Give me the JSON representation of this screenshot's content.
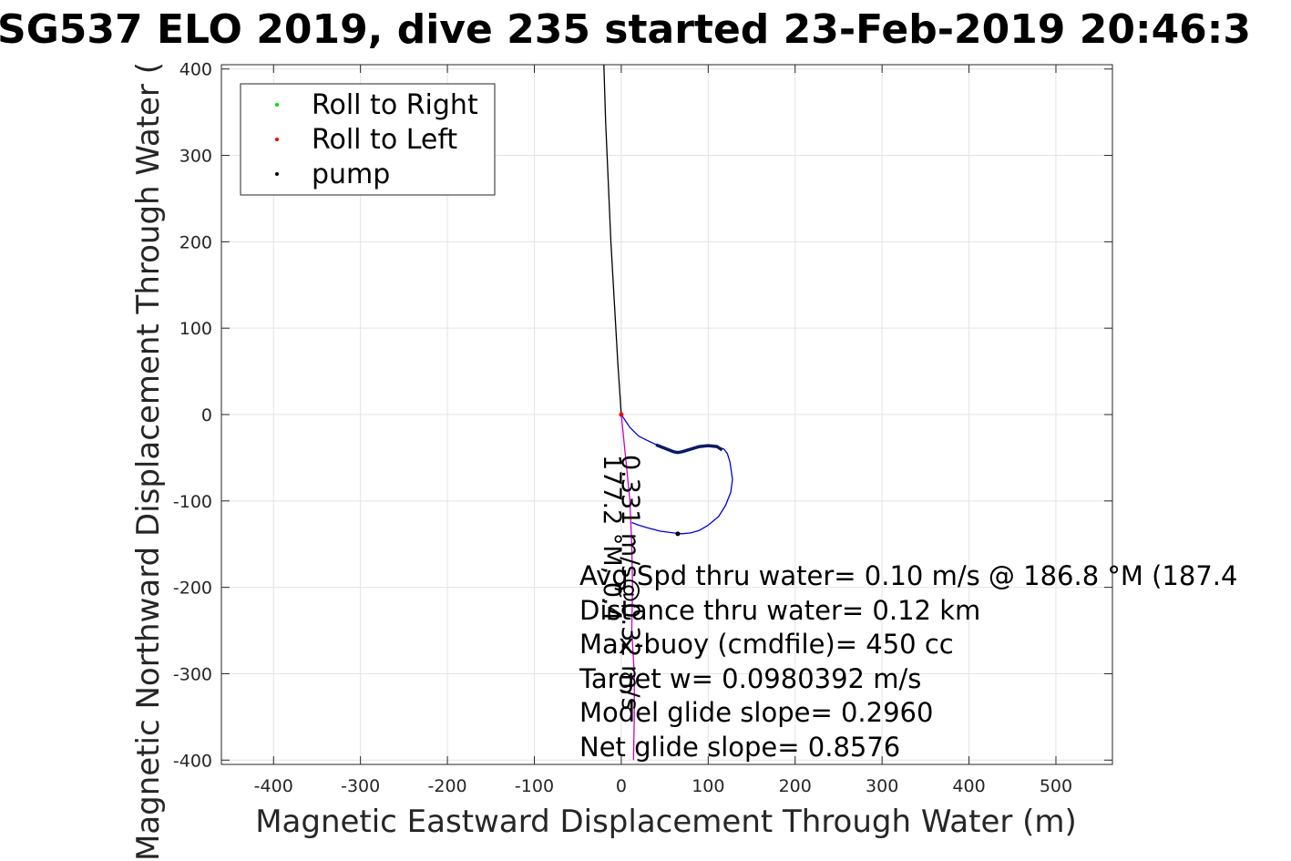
{
  "chart_data": {
    "type": "line",
    "title": "SG537 ELO 2019, dive 235 started 23-Feb-2019 20:46:3",
    "xlabel": "Magnetic Eastward Displacement Through Water (m)",
    "ylabel": "Magnetic Northward Displacement Through Water (",
    "xlim": [
      -460,
      565
    ],
    "ylim": [
      -405,
      405
    ],
    "xticks": [
      -400,
      -300,
      -200,
      -100,
      0,
      100,
      200,
      300,
      400,
      500
    ],
    "yticks": [
      400,
      300,
      200,
      100,
      0,
      -100,
      -200,
      -300,
      -400
    ],
    "xtick_labels": [
      "-400",
      "-300",
      "-200",
      "-100",
      "0",
      "100",
      "200",
      "300",
      "400",
      "500"
    ],
    "ytick_labels": [
      "400",
      "300",
      "200",
      "100",
      "0",
      "-100",
      "-200",
      "-300",
      "-400"
    ],
    "grid": true,
    "legend_placement": "top-left",
    "legend": [
      {
        "label": "Roll to Right",
        "color": "#00dd00"
      },
      {
        "label": "Roll to Left",
        "color": "#ee0000"
      },
      {
        "label": "pump",
        "color": "#000000"
      }
    ],
    "series": [
      {
        "color": "#0000dd",
        "x": [
          0,
          10,
          20,
          30,
          45,
          60,
          70,
          85,
          100,
          110,
          118,
          122,
          125,
          128,
          126,
          120,
          112,
          100,
          90,
          80,
          70,
          60,
          45,
          30,
          20,
          12
        ],
        "y": [
          0,
          -15,
          -25,
          -30,
          -37,
          -43,
          -44,
          -39,
          -36,
          -37,
          -40,
          -45,
          -55,
          -75,
          -90,
          -105,
          -118,
          -128,
          -134,
          -137,
          -138,
          -137,
          -135,
          -131,
          -128,
          -125
        ]
      },
      {
        "color": "#0a1a66",
        "x": [
          40,
          50,
          60,
          65,
          70,
          80,
          90,
          100,
          110,
          116
        ],
        "y": [
          -35,
          -39,
          -43,
          -44,
          -43,
          -40,
          -37,
          -36,
          -37,
          -41
        ]
      },
      {
        "color": "#cc00cc",
        "x": [
          0,
          5,
          10,
          12,
          13,
          12,
          15,
          15,
          14
        ],
        "y": [
          0,
          -50,
          -100,
          -150,
          -200,
          -250,
          -300,
          -350,
          -400
        ]
      },
      {
        "color": "#000000",
        "x": [
          0,
          -4,
          -8,
          -12,
          -15,
          -18,
          -20
        ],
        "y": [
          0,
          60,
          130,
          200,
          270,
          340,
          405
        ]
      }
    ],
    "annotations_vertical": [
      "0.331 m/s@0.32 m/s",
      "177.2 °M, 0.4"
    ],
    "stats": [
      "Avg Spd thru water=  0.10 m/s @ 186.8 °M (187.4",
      "Distance thru water=  0.12 km",
      "Max-buoy (cmdfile)= 450 cc",
      "Target w= 0.0980392 m/s",
      "Model glide slope= 0.2960",
      "Net glide slope= 0.8576"
    ]
  }
}
